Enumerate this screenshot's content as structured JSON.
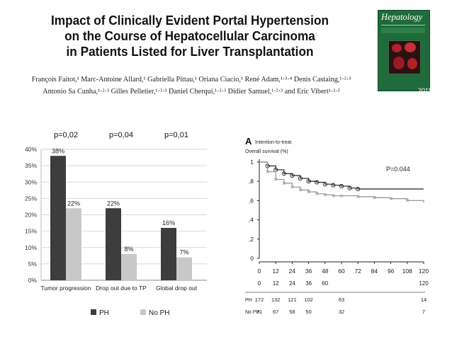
{
  "paper": {
    "title_lines": [
      "Impact of Clinically Evident Portal Hypertension",
      "on the Course of Hepatocellular Carcinoma",
      "in Patients Listed for Liver Transplantation"
    ],
    "author_lines": [
      "François Faitot,¹ Marc-Antoine Allard,¹ Gabriella Pittau,¹ Oriana Ciacio,¹ René Adam,¹·³·⁴ Denis Castaing,¹·²·³",
      "Antonio Sa Cunha,¹·²·³ Gilles Pelletier,¹·²·³ Daniel Cherqui,¹·²·³ Didier Samuel,¹·²·³ and Eric Vibert¹·²·³"
    ],
    "journal": {
      "name": "Hepatology",
      "year": "2015"
    }
  },
  "chart_data": [
    {
      "type": "bar",
      "categories": [
        "Tumor progression",
        "Drop out due to TP",
        "Global drop out"
      ],
      "series": [
        {
          "name": "PH",
          "values": [
            38,
            22,
            16
          ],
          "labels": [
            "38%",
            "22%",
            "16%"
          ],
          "color": "#3d3d3d"
        },
        {
          "name": "No PH",
          "values": [
            22,
            8,
            7
          ],
          "labels": [
            "22%",
            "8%",
            "7%"
          ],
          "color": "#c8c8c8"
        }
      ],
      "pvalues": [
        "p=0,02",
        "p=0,04",
        "p=0,01"
      ],
      "y_ticks": [
        "0%",
        "5%",
        "10%",
        "15%",
        "20%",
        "25%",
        "30%",
        "35%",
        "40%"
      ],
      "ylim": [
        0,
        40
      ],
      "legend_position": "bottom"
    },
    {
      "type": "line",
      "panel_label": "A",
      "title": "Intention-to-treat",
      "ylabel": "Overall survival (%)",
      "y_ticks": [
        "0",
        ",2",
        ",4",
        ",6",
        ",8",
        "1"
      ],
      "x_ticks": [
        "0",
        "12",
        "24",
        "36",
        "48",
        "60",
        "72",
        "84",
        "96",
        "108",
        "120"
      ],
      "xlim": [
        0,
        120
      ],
      "ylim": [
        0,
        1
      ],
      "pvalue": "P=0.044",
      "series": [
        {
          "name": "PH",
          "x": [
            0,
            6,
            12,
            18,
            24,
            30,
            36,
            42,
            48,
            54,
            60,
            66,
            72,
            120
          ],
          "y": [
            1.0,
            0.96,
            0.92,
            0.88,
            0.86,
            0.83,
            0.8,
            0.79,
            0.77,
            0.76,
            0.75,
            0.73,
            0.72,
            0.72
          ]
        },
        {
          "name": "No PH",
          "x": [
            0,
            6,
            12,
            18,
            24,
            30,
            36,
            42,
            48,
            54,
            60,
            72,
            84,
            96,
            108,
            120
          ],
          "y": [
            1.0,
            0.9,
            0.82,
            0.78,
            0.74,
            0.71,
            0.69,
            0.67,
            0.66,
            0.65,
            0.65,
            0.64,
            0.63,
            0.62,
            0.6,
            0.58
          ]
        }
      ],
      "risk_table": {
        "times": [
          "0",
          "12",
          "24",
          "36",
          "60",
          "120"
        ],
        "rows": [
          {
            "label": "PH",
            "values": [
              "172",
              "132",
              "121",
              "102",
              "63",
              "14"
            ]
          },
          {
            "label": "No PH",
            "values": [
              "71",
              "67",
              "58",
              "50",
              "32",
              "7"
            ]
          }
        ]
      }
    }
  ]
}
